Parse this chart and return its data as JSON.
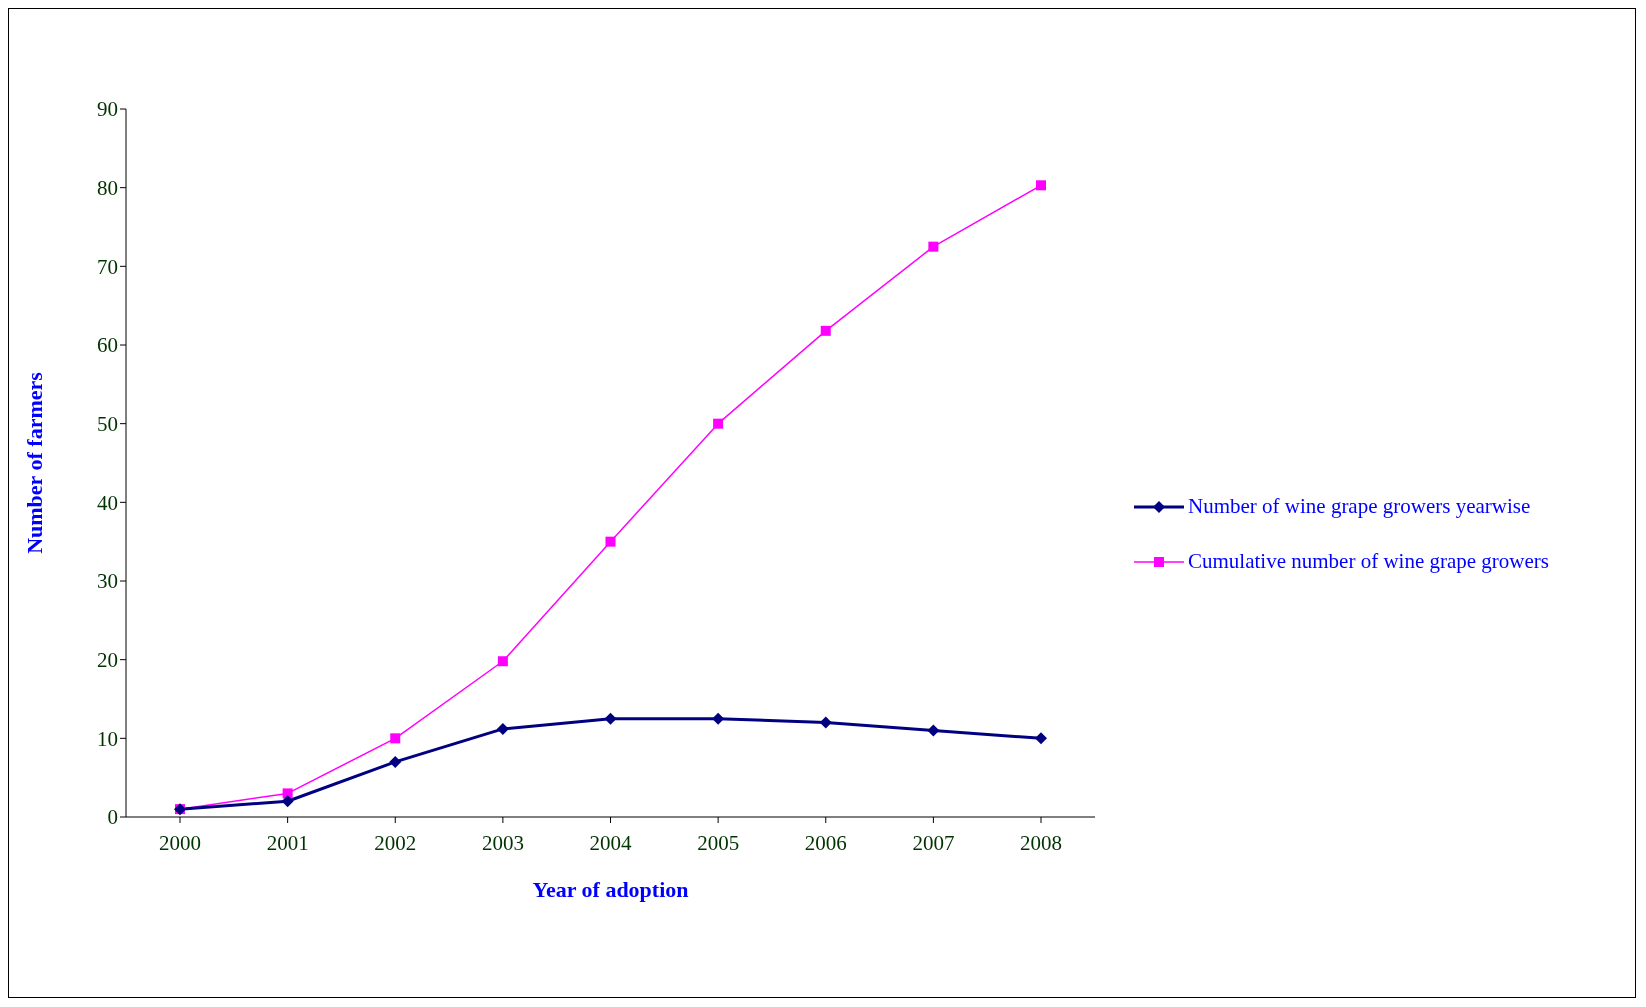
{
  "chart_data": {
    "type": "line",
    "xlabel": "Year  of adoption",
    "ylabel": "Number of farmers",
    "categories": [
      "2000",
      "2001",
      "2002",
      "2003",
      "2004",
      "2005",
      "2006",
      "2007",
      "2008"
    ],
    "series": [
      {
        "name": "Number of wine grape growers yearwise",
        "color": "#000080",
        "marker": "diamond",
        "values": [
          1,
          2,
          7,
          11.2,
          12.5,
          12.5,
          12,
          11,
          10
        ]
      },
      {
        "name": "Cumulative number of wine grape growers",
        "color": "#ff00ff",
        "marker": "square",
        "values": [
          1,
          3,
          10,
          19.8,
          35,
          50,
          61.8,
          72.5,
          80.3
        ]
      }
    ],
    "ylim": [
      0,
      90
    ],
    "yticks": [
      0,
      10,
      20,
      30,
      40,
      50,
      60,
      70,
      80,
      90
    ],
    "grid": false,
    "legend": "right"
  }
}
